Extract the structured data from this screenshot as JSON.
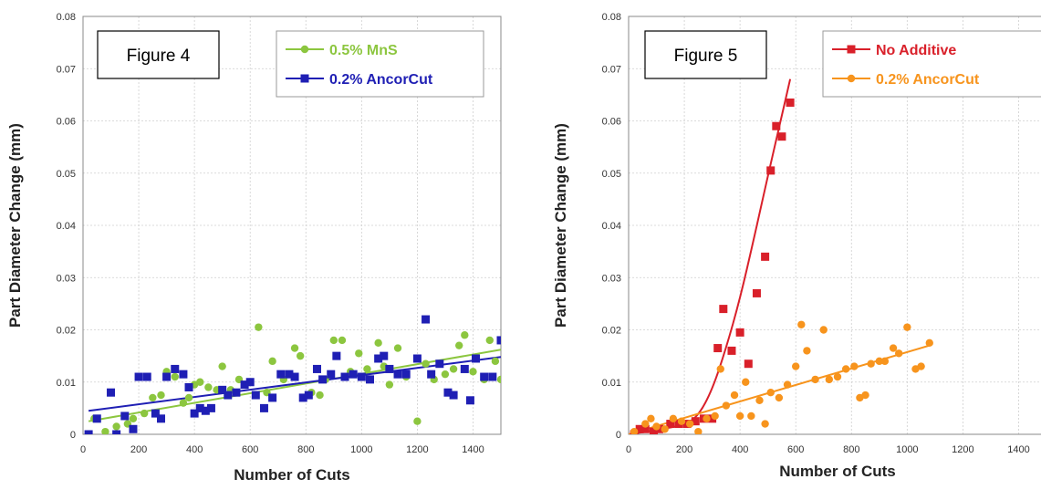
{
  "chart_data": [
    {
      "type": "scatter",
      "title": "Figure 4",
      "xlabel": "Number of Cuts",
      "ylabel": "Part Diameter Change (mm)",
      "xlim": [
        0,
        1500
      ],
      "ylim": [
        0,
        0.08
      ],
      "xticks": [
        0,
        200,
        400,
        600,
        800,
        1000,
        1200,
        1400
      ],
      "yticks": [
        0,
        0.01,
        0.02,
        0.03,
        0.04,
        0.05,
        0.06,
        0.07,
        0.08
      ],
      "ytick_labels": [
        "0",
        "0.01",
        "0.02",
        "0.03",
        "0.04",
        "0.05",
        "0.06",
        "0.07",
        "0.08"
      ],
      "grid": true,
      "legend_position": "top-right",
      "series": [
        {
          "name": "0.5% MnS",
          "color": "#8cc63f",
          "marker": "circle",
          "trend": {
            "type": "linear",
            "from": [
              20,
              0.0025
            ],
            "to": [
              1500,
              0.0162
            ]
          },
          "points": [
            [
              40,
              0.003
            ],
            [
              80,
              0.0005
            ],
            [
              120,
              0.0015
            ],
            [
              160,
              0.002
            ],
            [
              180,
              0.003
            ],
            [
              220,
              0.004
            ],
            [
              250,
              0.007
            ],
            [
              280,
              0.0075
            ],
            [
              300,
              0.012
            ],
            [
              330,
              0.011
            ],
            [
              360,
              0.006
            ],
            [
              380,
              0.007
            ],
            [
              400,
              0.0095
            ],
            [
              420,
              0.01
            ],
            [
              450,
              0.009
            ],
            [
              480,
              0.0085
            ],
            [
              500,
              0.013
            ],
            [
              530,
              0.0085
            ],
            [
              560,
              0.0105
            ],
            [
              600,
              0.01
            ],
            [
              630,
              0.0205
            ],
            [
              660,
              0.008
            ],
            [
              680,
              0.014
            ],
            [
              720,
              0.0105
            ],
            [
              760,
              0.0165
            ],
            [
              780,
              0.015
            ],
            [
              820,
              0.008
            ],
            [
              850,
              0.0075
            ],
            [
              870,
              0.0105
            ],
            [
              900,
              0.018
            ],
            [
              930,
              0.018
            ],
            [
              960,
              0.012
            ],
            [
              990,
              0.0155
            ],
            [
              1020,
              0.0125
            ],
            [
              1060,
              0.0175
            ],
            [
              1080,
              0.013
            ],
            [
              1100,
              0.0095
            ],
            [
              1130,
              0.0165
            ],
            [
              1160,
              0.011
            ],
            [
              1200,
              0.0025
            ],
            [
              1230,
              0.0135
            ],
            [
              1260,
              0.0105
            ],
            [
              1300,
              0.0115
            ],
            [
              1330,
              0.0125
            ],
            [
              1350,
              0.017
            ],
            [
              1370,
              0.019
            ],
            [
              1400,
              0.012
            ],
            [
              1440,
              0.0105
            ],
            [
              1460,
              0.018
            ],
            [
              1480,
              0.014
            ],
            [
              1500,
              0.0105
            ]
          ]
        },
        {
          "name": "0.2% AncorCut",
          "color": "#1f1fb4",
          "marker": "square",
          "trend": {
            "type": "linear",
            "from": [
              20,
              0.0045
            ],
            "to": [
              1500,
              0.0148
            ]
          },
          "points": [
            [
              20,
              0
            ],
            [
              50,
              0.003
            ],
            [
              100,
              0.008
            ],
            [
              120,
              0
            ],
            [
              150,
              0.0035
            ],
            [
              180,
              0.001
            ],
            [
              200,
              0.011
            ],
            [
              230,
              0.011
            ],
            [
              260,
              0.004
            ],
            [
              280,
              0.003
            ],
            [
              300,
              0.011
            ],
            [
              330,
              0.0125
            ],
            [
              360,
              0.0115
            ],
            [
              380,
              0.009
            ],
            [
              400,
              0.004
            ],
            [
              420,
              0.005
            ],
            [
              440,
              0.0045
            ],
            [
              460,
              0.005
            ],
            [
              500,
              0.0085
            ],
            [
              520,
              0.0075
            ],
            [
              550,
              0.008
            ],
            [
              580,
              0.0095
            ],
            [
              600,
              0.01
            ],
            [
              620,
              0.0075
            ],
            [
              650,
              0.005
            ],
            [
              680,
              0.007
            ],
            [
              710,
              0.0115
            ],
            [
              740,
              0.0115
            ],
            [
              760,
              0.011
            ],
            [
              790,
              0.007
            ],
            [
              810,
              0.0075
            ],
            [
              840,
              0.0125
            ],
            [
              860,
              0.0105
            ],
            [
              890,
              0.0115
            ],
            [
              910,
              0.015
            ],
            [
              940,
              0.011
            ],
            [
              970,
              0.0115
            ],
            [
              1000,
              0.011
            ],
            [
              1030,
              0.0105
            ],
            [
              1060,
              0.0145
            ],
            [
              1080,
              0.015
            ],
            [
              1100,
              0.0125
            ],
            [
              1130,
              0.0115
            ],
            [
              1160,
              0.0115
            ],
            [
              1200,
              0.0145
            ],
            [
              1230,
              0.022
            ],
            [
              1250,
              0.0115
            ],
            [
              1280,
              0.0135
            ],
            [
              1310,
              0.008
            ],
            [
              1330,
              0.0075
            ],
            [
              1370,
              0.0125
            ],
            [
              1390,
              0.0065
            ],
            [
              1410,
              0.0145
            ],
            [
              1440,
              0.011
            ],
            [
              1470,
              0.011
            ],
            [
              1500,
              0.018
            ]
          ]
        }
      ]
    },
    {
      "type": "scatter",
      "title": "Figure 5",
      "xlabel": "Number of Cuts",
      "ylabel": "Part Diameter Change (mm)",
      "xlim": [
        0,
        1500
      ],
      "ylim": [
        0,
        0.08
      ],
      "xticks": [
        0,
        200,
        400,
        600,
        800,
        1000,
        1200,
        1400
      ],
      "yticks": [
        0,
        0.01,
        0.02,
        0.03,
        0.04,
        0.05,
        0.06,
        0.07,
        0.08
      ],
      "ytick_labels": [
        "0",
        "0.01",
        "0.02",
        "0.03",
        "0.04",
        "0.05",
        "0.06",
        "0.07",
        "0.08"
      ],
      "grid": true,
      "legend_position": "top-right",
      "series": [
        {
          "name": "No Additive",
          "color": "#d9202a",
          "marker": "square",
          "trend": {
            "type": "curve",
            "points": [
              [
                0,
                0
              ],
              [
                100,
                0.0008
              ],
              [
                200,
                0.0018
              ],
              [
                250,
                0.0035
              ],
              [
                300,
                0.0085
              ],
              [
                350,
                0.0165
              ],
              [
                400,
                0.026
              ],
              [
                450,
                0.0375
              ],
              [
                500,
                0.0495
              ],
              [
                550,
                0.061
              ],
              [
                580,
                0.068
              ]
            ]
          },
          "points": [
            [
              20,
              0
            ],
            [
              40,
              0.001
            ],
            [
              60,
              0.001
            ],
            [
              90,
              0.0005
            ],
            [
              110,
              0.001
            ],
            [
              150,
              0.002
            ],
            [
              180,
              0.002
            ],
            [
              210,
              0.002
            ],
            [
              240,
              0.0025
            ],
            [
              270,
              0.003
            ],
            [
              300,
              0.003
            ],
            [
              320,
              0.0165
            ],
            [
              340,
              0.024
            ],
            [
              370,
              0.016
            ],
            [
              400,
              0.0195
            ],
            [
              430,
              0.0135
            ],
            [
              460,
              0.027
            ],
            [
              490,
              0.034
            ],
            [
              510,
              0.0505
            ],
            [
              530,
              0.059
            ],
            [
              550,
              0.057
            ],
            [
              580,
              0.0635
            ]
          ]
        },
        {
          "name": "0.2% AncorCut",
          "color": "#f7941d",
          "marker": "circle",
          "trend": {
            "type": "linear",
            "from": [
              0,
              0
            ],
            "to": [
              1080,
              0.017
            ]
          },
          "points": [
            [
              20,
              0.0005
            ],
            [
              60,
              0.002
            ],
            [
              80,
              0.003
            ],
            [
              100,
              0.0015
            ],
            [
              130,
              0.001
            ],
            [
              160,
              0.003
            ],
            [
              190,
              0.0025
            ],
            [
              220,
              0.002
            ],
            [
              250,
              0.0005
            ],
            [
              280,
              0.003
            ],
            [
              310,
              0.0035
            ],
            [
              330,
              0.0125
            ],
            [
              350,
              0.0055
            ],
            [
              380,
              0.0075
            ],
            [
              400,
              0.0035
            ],
            [
              420,
              0.01
            ],
            [
              440,
              0.0035
            ],
            [
              470,
              0.0065
            ],
            [
              490,
              0.002
            ],
            [
              510,
              0.008
            ],
            [
              540,
              0.007
            ],
            [
              570,
              0.0095
            ],
            [
              600,
              0.013
            ],
            [
              620,
              0.021
            ],
            [
              640,
              0.016
            ],
            [
              670,
              0.0105
            ],
            [
              700,
              0.02
            ],
            [
              720,
              0.0105
            ],
            [
              750,
              0.011
            ],
            [
              780,
              0.0125
            ],
            [
              810,
              0.013
            ],
            [
              830,
              0.007
            ],
            [
              850,
              0.0075
            ],
            [
              870,
              0.0135
            ],
            [
              900,
              0.014
            ],
            [
              920,
              0.014
            ],
            [
              950,
              0.0165
            ],
            [
              970,
              0.0155
            ],
            [
              1000,
              0.0205
            ],
            [
              1030,
              0.0125
            ],
            [
              1050,
              0.013
            ],
            [
              1080,
              0.0175
            ]
          ]
        }
      ]
    }
  ]
}
